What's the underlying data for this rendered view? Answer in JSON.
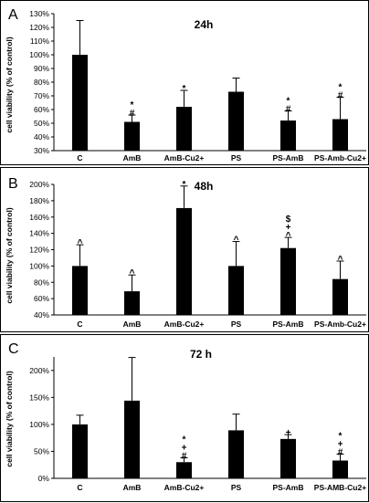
{
  "chart_data": [
    {
      "type": "bar",
      "panel_letter": "A",
      "title": "24h",
      "ylabel": "cell viability (% of control)",
      "ylim": [
        30,
        130
      ],
      "yticks": [
        30,
        40,
        50,
        60,
        70,
        80,
        90,
        100,
        110,
        120,
        130
      ],
      "tick_suffix": "%",
      "categories": [
        "C",
        "AmB",
        "AmB-Cu2+",
        "PS",
        "PS-AmB",
        "PS-Amb-Cu2+"
      ],
      "values": [
        100,
        51,
        62,
        73,
        52,
        53
      ],
      "errors": [
        25,
        5,
        12,
        10,
        7,
        16
      ],
      "annotations": [
        [],
        [
          "*",
          "#"
        ],
        [
          "*"
        ],
        [],
        [
          "*",
          "#"
        ],
        [
          "*",
          "#"
        ]
      ],
      "grid": false,
      "color": "#000000"
    },
    {
      "type": "bar",
      "panel_letter": "B",
      "title": "48h",
      "ylabel": "cell viability (% of control)",
      "ylim": [
        40,
        200
      ],
      "yticks": [
        40,
        60,
        80,
        100,
        120,
        140,
        160,
        180,
        200
      ],
      "tick_suffix": "%",
      "categories": [
        "C",
        "AmB",
        "AmB-Cu2+",
        "PS",
        "PS-AmB",
        "PS-Amb-Cu2+"
      ],
      "values": [
        100,
        69,
        171,
        100,
        122,
        84
      ],
      "errors": [
        26,
        20,
        27,
        30,
        13,
        22
      ],
      "annotations": [
        [
          "^"
        ],
        [
          "^"
        ],
        [
          "*"
        ],
        [
          "^"
        ],
        [
          "$",
          "+",
          "^"
        ],
        [
          "^"
        ]
      ],
      "grid": false,
      "color": "#000000"
    },
    {
      "type": "bar",
      "panel_letter": "C",
      "title": "72 h",
      "ylabel": "cell viability (% of control)",
      "ylim": [
        0,
        225
      ],
      "yticks": [
        0,
        50,
        100,
        150,
        200
      ],
      "tick_suffix": "%",
      "categories": [
        "C",
        "AmB",
        "AmB-Cu2+",
        "PS",
        "PS-AmB",
        "PS-AMB-Cu2+"
      ],
      "values": [
        100,
        144,
        30,
        89,
        73,
        33
      ],
      "errors": [
        17,
        80,
        8,
        30,
        8,
        12
      ],
      "annotations": [
        [],
        [],
        [
          "*",
          "+",
          "#"
        ],
        [],
        [
          "+"
        ],
        [
          "*",
          "+",
          "#"
        ]
      ],
      "grid": false,
      "color": "#000000"
    }
  ]
}
